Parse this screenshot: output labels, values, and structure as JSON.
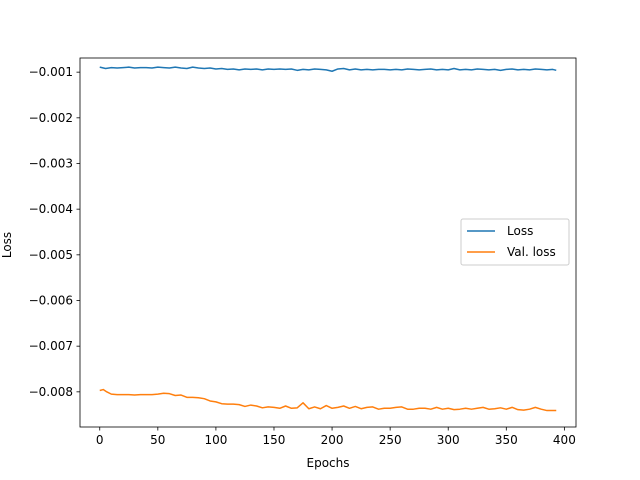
{
  "chart_data": {
    "type": "line",
    "xlabel": "Epochs",
    "ylabel": "Loss",
    "xlim": [
      -17,
      410
    ],
    "ylim": [
      -0.00877,
      -0.00069
    ],
    "x_ticks": [
      0,
      50,
      100,
      150,
      200,
      250,
      300,
      350,
      400
    ],
    "y_ticks": [
      -0.001,
      -0.002,
      -0.003,
      -0.004,
      -0.005,
      -0.006,
      -0.007,
      -0.008
    ],
    "y_tick_labels": [
      "−0.001",
      "−0.002",
      "−0.003",
      "−0.004",
      "−0.005",
      "−0.006",
      "−0.007",
      "−0.008"
    ],
    "legend_position": "center-right",
    "series": [
      {
        "name": "Loss",
        "color": "#1f77b4",
        "x": [
          0,
          5,
          10,
          15,
          20,
          25,
          30,
          35,
          40,
          45,
          50,
          55,
          60,
          65,
          70,
          75,
          80,
          85,
          90,
          95,
          100,
          105,
          110,
          115,
          120,
          125,
          130,
          135,
          140,
          145,
          150,
          155,
          160,
          165,
          170,
          175,
          180,
          185,
          190,
          195,
          200,
          205,
          210,
          215,
          220,
          225,
          230,
          235,
          240,
          245,
          250,
          255,
          260,
          265,
          270,
          275,
          280,
          285,
          290,
          295,
          300,
          305,
          310,
          315,
          320,
          325,
          330,
          335,
          340,
          345,
          350,
          355,
          360,
          365,
          370,
          375,
          380,
          385,
          390,
          393
        ],
        "y": [
          -0.00089,
          -0.00092,
          -0.0009,
          -0.00091,
          -0.0009,
          -0.00089,
          -0.00091,
          -0.0009,
          -0.0009,
          -0.00091,
          -0.00089,
          -0.0009,
          -0.00091,
          -0.00089,
          -0.00091,
          -0.00092,
          -0.00089,
          -0.00091,
          -0.00092,
          -0.00091,
          -0.00093,
          -0.00092,
          -0.00094,
          -0.00093,
          -0.00095,
          -0.00093,
          -0.00094,
          -0.00093,
          -0.00095,
          -0.00093,
          -0.00094,
          -0.00093,
          -0.00094,
          -0.00093,
          -0.00096,
          -0.00094,
          -0.00095,
          -0.00093,
          -0.00094,
          -0.00095,
          -0.00098,
          -0.00093,
          -0.00092,
          -0.00095,
          -0.00093,
          -0.00095,
          -0.00094,
          -0.00095,
          -0.00094,
          -0.00094,
          -0.00095,
          -0.00094,
          -0.00095,
          -0.00093,
          -0.00094,
          -0.00095,
          -0.00094,
          -0.00093,
          -0.00095,
          -0.00094,
          -0.00095,
          -0.00092,
          -0.00095,
          -0.00094,
          -0.00095,
          -0.00093,
          -0.00094,
          -0.00095,
          -0.00094,
          -0.00096,
          -0.00094,
          -0.00093,
          -0.00095,
          -0.00094,
          -0.00095,
          -0.00093,
          -0.00094,
          -0.00095,
          -0.00094,
          -0.00096
        ]
      },
      {
        "name": "Val. loss",
        "color": "#ff7f0e",
        "x": [
          0,
          3,
          6,
          10,
          15,
          20,
          25,
          30,
          35,
          40,
          45,
          50,
          55,
          60,
          65,
          70,
          75,
          80,
          85,
          90,
          95,
          100,
          105,
          110,
          115,
          120,
          125,
          130,
          135,
          140,
          145,
          150,
          155,
          160,
          165,
          170,
          175,
          180,
          185,
          190,
          195,
          200,
          205,
          210,
          215,
          220,
          225,
          230,
          235,
          240,
          245,
          250,
          255,
          260,
          265,
          270,
          275,
          280,
          285,
          290,
          295,
          300,
          305,
          310,
          315,
          320,
          325,
          330,
          335,
          340,
          345,
          350,
          355,
          360,
          365,
          370,
          375,
          380,
          385,
          393
        ],
        "y": [
          -0.00797,
          -0.00795,
          -0.008,
          -0.00805,
          -0.00806,
          -0.00806,
          -0.00806,
          -0.00807,
          -0.00806,
          -0.00806,
          -0.00806,
          -0.00805,
          -0.00803,
          -0.00804,
          -0.00808,
          -0.00807,
          -0.00812,
          -0.00812,
          -0.00813,
          -0.00815,
          -0.0082,
          -0.00822,
          -0.00826,
          -0.00827,
          -0.00827,
          -0.00828,
          -0.00832,
          -0.00829,
          -0.00831,
          -0.00835,
          -0.00833,
          -0.00834,
          -0.00836,
          -0.00831,
          -0.00836,
          -0.00835,
          -0.00824,
          -0.00837,
          -0.00833,
          -0.00837,
          -0.0083,
          -0.00836,
          -0.00834,
          -0.00831,
          -0.00836,
          -0.00832,
          -0.00837,
          -0.00834,
          -0.00833,
          -0.00838,
          -0.00836,
          -0.00836,
          -0.00834,
          -0.00833,
          -0.00838,
          -0.00838,
          -0.00836,
          -0.00836,
          -0.00838,
          -0.00834,
          -0.00838,
          -0.00836,
          -0.00839,
          -0.00838,
          -0.00836,
          -0.00838,
          -0.00836,
          -0.00834,
          -0.00838,
          -0.00837,
          -0.00835,
          -0.00838,
          -0.00834,
          -0.00839,
          -0.0084,
          -0.00838,
          -0.00834,
          -0.00838,
          -0.00841,
          -0.00841
        ]
      }
    ]
  }
}
